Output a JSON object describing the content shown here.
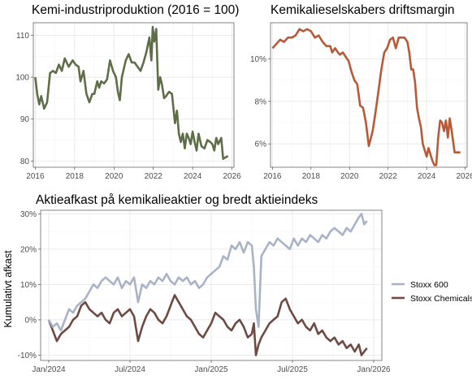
{
  "chart_data": [
    {
      "id": "production",
      "type": "line",
      "title": "Kemi-industriproduktion (2016 = 100)",
      "xlabel": "",
      "ylabel": "",
      "x_ticks": [
        "2016",
        "2018",
        "2020",
        "2022",
        "2024",
        "2026"
      ],
      "y_ticks": [
        "80",
        "90",
        "100",
        "110"
      ],
      "xlim": [
        2015.9,
        2026.1
      ],
      "ylim": [
        78.5,
        113
      ],
      "grid": true,
      "color": "#5e6e48",
      "series": [
        {
          "x": [
            2016.0,
            2016.1,
            2016.2,
            2016.3,
            2016.45,
            2016.6,
            2016.75,
            2016.9,
            2017.05,
            2017.2,
            2017.35,
            2017.5,
            2017.7,
            2017.9,
            2018.05,
            2018.2,
            2018.3,
            2018.45,
            2018.6,
            2018.75,
            2018.9,
            2019.0,
            2019.15,
            2019.25,
            2019.35,
            2019.5,
            2019.65,
            2019.8,
            2019.95,
            2020.1,
            2020.2,
            2020.3,
            2020.4,
            2020.5,
            2020.6,
            2020.75,
            2020.9,
            2021.05,
            2021.2,
            2021.35,
            2021.5,
            2021.65,
            2021.8,
            2021.9,
            2021.97,
            2022.05,
            2022.15,
            2022.25,
            2022.35,
            2022.45,
            2022.55,
            2022.65,
            2022.8,
            2022.95,
            2023.1,
            2023.2,
            2023.3,
            2023.4,
            2023.5,
            2023.6,
            2023.7,
            2023.8,
            2023.9,
            2024.0,
            2024.1,
            2024.2,
            2024.3,
            2024.45,
            2024.6,
            2024.75,
            2024.9,
            2025.0,
            2025.1,
            2025.2,
            2025.3,
            2025.45,
            2025.55,
            2025.65,
            2025.8
          ],
          "y": [
            100,
            96,
            93.5,
            95.5,
            92.5,
            94,
            101,
            101.5,
            101,
            103,
            101.5,
            104.5,
            102.5,
            104,
            103,
            102.5,
            99,
            101.5,
            96,
            94,
            96,
            96,
            99,
            97.5,
            99,
            98.5,
            99.5,
            104,
            101.5,
            100,
            96.5,
            94.5,
            100,
            102,
            104,
            105.5,
            103.5,
            103.5,
            102.5,
            101.5,
            103.5,
            106,
            109.5,
            104,
            112,
            108.5,
            111.5,
            97,
            100,
            98,
            95,
            95.5,
            96.5,
            96,
            89,
            92,
            86.5,
            84.5,
            86.5,
            83,
            86.5,
            85.5,
            84,
            87,
            84.5,
            82.5,
            86.5,
            83.5,
            83,
            85,
            84.5,
            84,
            82.5,
            85.5,
            84,
            85.5,
            80.5,
            80.8,
            81.2
          ]
        }
      ]
    },
    {
      "id": "margin",
      "type": "line",
      "title": "Kemikalieselskabers driftsmargin",
      "xlabel": "",
      "ylabel": "",
      "x_ticks": [
        "2016",
        "2018",
        "2020",
        "2022",
        "2024",
        "2026"
      ],
      "y_ticks": [
        "6%",
        "8%",
        "10%"
      ],
      "xlim": [
        2015.9,
        2026.1
      ],
      "ylim": [
        4.9,
        11.7
      ],
      "grid": true,
      "color": "#b85a38",
      "series": [
        {
          "x": [
            2016.0,
            2016.2,
            2016.4,
            2016.6,
            2016.8,
            2017.0,
            2017.2,
            2017.4,
            2017.6,
            2017.8,
            2018.0,
            2018.2,
            2018.4,
            2018.6,
            2018.8,
            2019.0,
            2019.1,
            2019.25,
            2019.4,
            2019.5,
            2019.65,
            2019.8,
            2019.95,
            2020.1,
            2020.25,
            2020.4,
            2020.55,
            2020.7,
            2020.85,
            2021.0,
            2021.2,
            2021.35,
            2021.5,
            2021.65,
            2021.8,
            2021.95,
            2022.1,
            2022.25,
            2022.4,
            2022.55,
            2022.7,
            2022.85,
            2023.0,
            2023.1,
            2023.2,
            2023.3,
            2023.4,
            2023.5,
            2023.6,
            2023.7,
            2023.8,
            2023.9,
            2024.0,
            2024.1,
            2024.2,
            2024.3,
            2024.4,
            2024.5,
            2024.6,
            2024.7,
            2024.8,
            2024.9,
            2025.0,
            2025.1,
            2025.2,
            2025.3,
            2025.45,
            2025.6,
            2025.75
          ],
          "y": [
            10.5,
            10.7,
            10.9,
            10.8,
            11.0,
            11.0,
            11.1,
            11.4,
            11.3,
            11.4,
            11.3,
            11.0,
            11.1,
            10.8,
            10.6,
            10.6,
            10.3,
            10.5,
            10.3,
            10.2,
            10.3,
            10.1,
            9.9,
            9.4,
            9.0,
            8.8,
            7.8,
            7.7,
            7.0,
            5.9,
            6.6,
            7.5,
            8.5,
            9.5,
            10.3,
            10.5,
            10.9,
            11.0,
            10.5,
            11.0,
            11.0,
            11.0,
            10.8,
            10.3,
            9.5,
            9.5,
            8.9,
            7.7,
            7.2,
            6.8,
            6.0,
            5.7,
            5.4,
            5.8,
            5.5,
            5.2,
            5.0,
            5.0,
            6.3,
            7.1,
            7.0,
            6.6,
            7.1,
            6.3,
            7.2,
            6.6,
            5.6,
            5.6,
            5.6
          ]
        }
      ]
    },
    {
      "id": "returns",
      "type": "line",
      "title": "Aktieafkast på kemikalieaktier og bredt aktieindeks",
      "xlabel": "",
      "ylabel": "Kumulativt afkast",
      "x_ticks": [
        "Jan/2024",
        "Jul/2024",
        "Jan/2025",
        "Jul/2025",
        "Jan/2026"
      ],
      "x_tick_pos": [
        0,
        6,
        12,
        18,
        24
      ],
      "y_ticks": [
        "-10%",
        "0%",
        "10%",
        "20%",
        "30%"
      ],
      "xlim": [
        -0.6,
        24.6
      ],
      "ylim": [
        -11.5,
        31
      ],
      "grid": true,
      "legend": "right",
      "series": [
        {
          "name": "Stoxx 600",
          "color": "#a9b3c8",
          "x": [
            0.0,
            0.3,
            0.6,
            0.9,
            1.2,
            1.5,
            1.8,
            2.1,
            2.4,
            2.7,
            3.0,
            3.3,
            3.6,
            3.9,
            4.2,
            4.5,
            4.8,
            5.1,
            5.4,
            5.7,
            6.0,
            6.3,
            6.6,
            6.9,
            7.2,
            7.5,
            7.8,
            8.1,
            8.4,
            8.7,
            9.0,
            9.3,
            9.6,
            9.9,
            10.2,
            10.5,
            10.8,
            11.1,
            11.4,
            11.7,
            12.0,
            12.3,
            12.6,
            12.9,
            13.2,
            13.5,
            13.8,
            14.1,
            14.4,
            14.7,
            15.0,
            15.15,
            15.3,
            15.5,
            15.7,
            16.0,
            16.3,
            16.6,
            16.9,
            17.2,
            17.5,
            17.8,
            18.1,
            18.4,
            18.7,
            19.0,
            19.3,
            19.6,
            19.9,
            20.2,
            20.5,
            20.8,
            21.1,
            21.4,
            21.7,
            22.0,
            22.3,
            22.6,
            22.9,
            23.1,
            23.3,
            23.5
          ],
          "y": [
            0,
            -2,
            -1,
            -3,
            0,
            3,
            2,
            4,
            5,
            6,
            8,
            10,
            9,
            11,
            12,
            11,
            10,
            12,
            9,
            11,
            10,
            12,
            5,
            10,
            9,
            11,
            10,
            12,
            11,
            13,
            11,
            10,
            12,
            11,
            12,
            10,
            11,
            9,
            10,
            12,
            13,
            14,
            15,
            18,
            17,
            21,
            20,
            22,
            19,
            22,
            21,
            15,
            3,
            -2,
            18,
            20,
            22,
            21,
            23,
            22,
            21,
            20,
            23,
            21,
            23,
            22,
            24,
            23,
            22,
            24,
            23,
            25,
            26,
            25,
            24,
            26,
            25,
            27,
            29,
            30,
            27,
            28
          ]
        },
        {
          "name": "Stoxx Chemicals",
          "color": "#6e4a43",
          "x": [
            0.0,
            0.3,
            0.6,
            0.9,
            1.2,
            1.5,
            1.8,
            2.1,
            2.4,
            2.7,
            3.0,
            3.3,
            3.6,
            3.9,
            4.2,
            4.5,
            4.8,
            5.1,
            5.4,
            5.7,
            6.0,
            6.3,
            6.6,
            6.9,
            7.2,
            7.5,
            7.8,
            8.1,
            8.4,
            8.7,
            9.0,
            9.3,
            9.6,
            9.9,
            10.2,
            10.5,
            10.8,
            11.1,
            11.4,
            11.7,
            12.0,
            12.3,
            12.6,
            12.9,
            13.2,
            13.5,
            13.8,
            14.1,
            14.4,
            14.7,
            15.0,
            15.15,
            15.3,
            15.5,
            15.7,
            16.0,
            16.3,
            16.6,
            16.9,
            17.2,
            17.5,
            17.8,
            18.1,
            18.4,
            18.7,
            19.0,
            19.3,
            19.6,
            19.9,
            20.2,
            20.5,
            20.8,
            21.1,
            21.4,
            21.7,
            22.0,
            22.3,
            22.6,
            22.9,
            23.1,
            23.3,
            23.5
          ],
          "y": [
            0,
            -3,
            -6,
            -4,
            -3,
            -2,
            0,
            1,
            4,
            5,
            3,
            2,
            1,
            2,
            0,
            -1,
            2,
            3,
            1,
            2,
            3,
            1,
            -6,
            -2,
            1,
            3,
            2,
            0,
            -1,
            1,
            4,
            7,
            5,
            3,
            1,
            0,
            -2,
            -4,
            -5,
            -3,
            -1,
            2,
            1,
            0,
            -2,
            -3,
            -1,
            0,
            -2,
            -5,
            -4,
            -1,
            -10,
            -7,
            -5,
            -3,
            -1,
            0,
            1,
            5,
            6,
            3,
            1,
            -1,
            0,
            -2,
            -3,
            -1,
            -4,
            -3,
            -5,
            -6,
            -5,
            -7,
            -6,
            -8,
            -7,
            -9,
            -7,
            -10,
            -9,
            -8
          ]
        }
      ]
    }
  ]
}
